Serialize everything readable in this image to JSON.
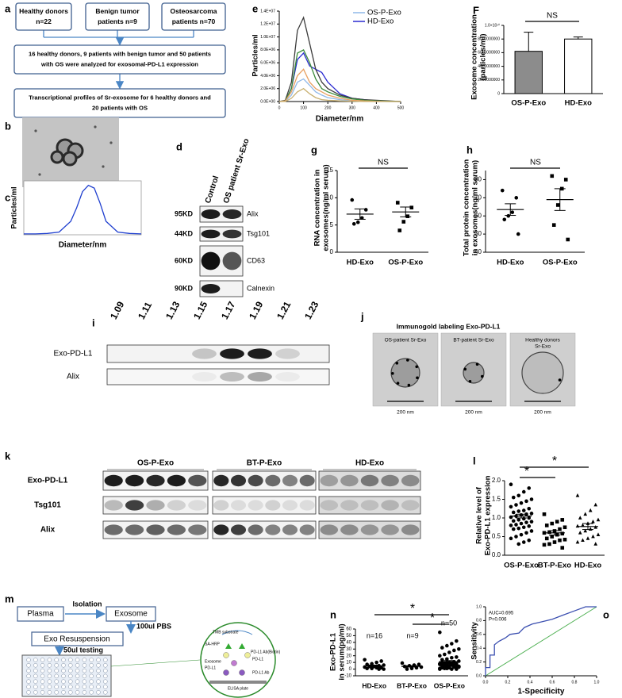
{
  "flowchart": {
    "label": "a",
    "boxes": [
      [
        "Healthy donors",
        "n=22"
      ],
      [
        "Benign tumor",
        "patients n=9"
      ],
      [
        "Osteosarcoma",
        "patients n=70"
      ],
      [
        "16 healthy donors, 9 patients with benign tumor and 50 patients",
        "with OS were analyzed for exosomal-PD-L1 expression"
      ],
      [
        "Transcriptional profiles of Sr-exosome for 6 healthy donors and",
        "20 patients with OS"
      ]
    ]
  },
  "em_image": {
    "label": "b"
  },
  "western_blot_d": {
    "label": "d",
    "columns": [
      "Control",
      "OS patient Sr-Exo"
    ],
    "rows": [
      {
        "size": "95KD",
        "protein": "Alix"
      },
      {
        "size": "44KD",
        "protein": "Tsg101"
      },
      {
        "size": "60KD",
        "protein": "CD63"
      },
      {
        "size": "90KD",
        "protein": "Calnexin"
      }
    ]
  },
  "density_blot": {
    "label": "i",
    "fractions": [
      1.09,
      1.11,
      1.13,
      1.15,
      1.17,
      1.19,
      1.21,
      1.23
    ],
    "rows": [
      "Exo-PD-L1",
      "Alix"
    ]
  },
  "immunogold": {
    "label": "j",
    "title": "Immunogold labeling Exo-PD-L1",
    "images": [
      {
        "caption": [
          "OS-patient  Sr-Exo"
        ],
        "scale": "200 nm"
      },
      {
        "caption": [
          "BT-patient  Sr-Exo"
        ],
        "scale": "200 nm"
      },
      {
        "caption": [
          "Healthy donors",
          "Sr-Exo"
        ],
        "scale": "200 nm"
      }
    ]
  },
  "western_blot_k": {
    "label": "k",
    "groups": [
      "OS-P-Exo",
      "BT-P-Exo",
      "HD-Exo"
    ],
    "rows": [
      "Exo-PD-L1",
      "Tsg101",
      "Alix"
    ]
  },
  "elisa_diagram": {
    "label": "m",
    "plasma": "Plasma",
    "isolation": "Isolation",
    "exosome": "Exosome",
    "pbs": "100ul PBS",
    "resuspension": "Exo Resuspension",
    "testing": "50ul testing",
    "inset": [
      "TMB substrate",
      "SA-HRP",
      "Exosome",
      "PD-L1",
      "PD-L1 Ab(Biotin)",
      "PD-L1",
      "PD-L1 Ab",
      "ELISA plate"
    ]
  },
  "chart_data": [
    {
      "type": "line",
      "label": "c",
      "ylabel": [
        "Particles/ml"
      ],
      "xlabel": "Diameter/nm",
      "x": [
        0,
        20,
        40,
        60,
        80,
        90,
        100,
        110,
        120,
        130,
        140,
        160,
        180,
        200
      ],
      "series": [
        {
          "color": "#1f3fcf",
          "values": [
            100000,
            100000,
            150000,
            300000,
            1500000,
            3000000,
            4800000,
            5500000,
            5200000,
            3500000,
            1500000,
            300000,
            150000,
            100000
          ]
        }
      ],
      "xlim": [
        0,
        200
      ],
      "ylim": [
        0,
        6000000
      ]
    },
    {
      "type": "line",
      "label": "e",
      "ylabel": [
        "Particles/ml"
      ],
      "xlabel": "Diameter/nm",
      "x": [
        0,
        25,
        50,
        75,
        100,
        125,
        150,
        175,
        200,
        250,
        300,
        350,
        400,
        450,
        500
      ],
      "series": [
        {
          "name": "OS-P-Exo",
          "color": "#8fb8e8",
          "values": [
            0,
            50000,
            1000000,
            3000000,
            3500000,
            2500000,
            1500000,
            1000000,
            600000,
            300000,
            100000,
            50000,
            0,
            0,
            0
          ]
        },
        {
          "name": "HD-Exo",
          "color": "#2a2ad0",
          "values": [
            0,
            100000,
            2000000,
            6500000,
            7500000,
            5500000,
            5000000,
            4500000,
            3000000,
            1200000,
            500000,
            300000,
            100000,
            50000,
            0
          ]
        },
        {
          "color": "#3c3c3c",
          "values": [
            0,
            200000,
            3000000,
            11000000,
            13000000,
            9000000,
            5000000,
            3000000,
            2000000,
            1000000,
            500000,
            300000,
            200000,
            100000,
            0
          ]
        },
        {
          "color": "#3a8a3a",
          "values": [
            0,
            100000,
            2000000,
            7500000,
            8000000,
            6000000,
            3500000,
            2000000,
            1500000,
            800000,
            400000,
            200000,
            100000,
            50000,
            0
          ]
        },
        {
          "color": "#e8a060",
          "values": [
            0,
            100000,
            1500000,
            4000000,
            5000000,
            3000000,
            2000000,
            1500000,
            1000000,
            500000,
            200000,
            100000,
            50000,
            0,
            0
          ]
        },
        {
          "color": "#c8b070",
          "values": [
            0,
            0,
            500000,
            1500000,
            2000000,
            1200000,
            600000,
            300000,
            200000,
            100000,
            50000,
            0,
            0,
            0,
            0
          ]
        }
      ],
      "xlim": [
        0,
        500
      ],
      "ylim": [
        0,
        14000000
      ],
      "xticks": [
        0,
        100,
        200,
        300,
        400,
        500
      ],
      "yticks": [
        {
          "value": 0,
          "label": "0.0E+00"
        },
        {
          "value": 2000000,
          "label": "2.0E+06"
        },
        {
          "value": 4000000,
          "label": "4.0E+06"
        },
        {
          "value": 6000000,
          "label": "6.0E+06"
        },
        {
          "value": 8000000,
          "label": "8.0E+06"
        },
        {
          "value": 10000000,
          "label": "1.0E+07"
        },
        {
          "value": 12000000,
          "label": "1.2E+07"
        },
        {
          "value": 14000000,
          "label": "1.4E+07"
        }
      ]
    },
    {
      "type": "bar",
      "label": "F",
      "ylabel": [
        "Exosome concentration",
        "(particles/ml)"
      ],
      "categories": [
        "OS-P-Exo",
        "HD-Exo"
      ],
      "values": [
        6200000000,
        8000000000
      ],
      "errors": [
        2800000000,
        300000000
      ],
      "colors": [
        "#8c8c8c",
        "#ffffff"
      ],
      "ylim": [
        0,
        10000000000
      ],
      "yticks": [
        0,
        2000000000,
        4000000000,
        6000000000,
        8000000000,
        {
          "value": 10000000000,
          "label": "1.0×10¹⁰"
        }
      ],
      "annotations": [
        "NS"
      ]
    },
    {
      "type": "dot",
      "label": "g",
      "ylabel": [
        "RNA concentration in",
        "exosomes(ng/ml serum)"
      ],
      "groups": [
        {
          "name": "HD-Exo",
          "points": [
            9.6,
            7.8,
            6.3,
            5.5,
            5.2
          ],
          "mean": 7.0,
          "sem": 0.95
        },
        {
          "name": "OS-P-Exo",
          "points": [
            9.1,
            8.2,
            6.6,
            5.6,
            4.0
          ],
          "mean": 7.4,
          "sem": 0.9
        }
      ],
      "markers": [
        "circle",
        "square"
      ],
      "ylim": [
        0,
        15
      ],
      "yticks": [
        0,
        5,
        10,
        15
      ],
      "annotations": [
        "NS"
      ]
    },
    {
      "type": "dot",
      "label": "h",
      "ylabel": [
        "Total protein concentration",
        "in exosomes(ng/ml serum)"
      ],
      "groups": [
        {
          "name": "HD-Exo",
          "points": [
            74,
            70,
            62,
            60,
            58,
            50
          ],
          "mean": 63.5,
          "sem": 3.2
        },
        {
          "name": "OS-P-Exo",
          "points": [
            82,
            80,
            75,
            66,
            55,
            47
          ],
          "mean": 69,
          "sem": 6
        }
      ],
      "markers": [
        "circle",
        "square"
      ],
      "ylim": [
        40,
        85
      ],
      "yticks": [
        40,
        50,
        60,
        70,
        80
      ],
      "annotations": [
        "NS"
      ]
    },
    {
      "type": "dot",
      "label": "l",
      "ylabel": [
        "Relative level of",
        "Exo-PD-L1 expression"
      ],
      "groups": [
        {
          "name": "OS-P-Exo",
          "points": [
            1.9,
            1.8,
            1.7,
            1.6,
            1.55,
            1.5,
            1.45,
            1.4,
            1.35,
            1.3,
            1.25,
            1.2,
            1.18,
            1.15,
            1.12,
            1.1,
            1.08,
            1.05,
            1.02,
            1.0,
            0.98,
            0.95,
            0.92,
            0.9,
            0.88,
            0.85,
            0.82,
            0.8,
            0.78,
            0.75,
            0.72,
            0.7,
            0.65,
            0.6,
            0.55,
            0.5,
            0.45,
            0.4,
            0.35,
            0.3
          ],
          "mean": 1.05,
          "sem": 0.05
        },
        {
          "name": "BT-P-Exo",
          "points": [
            1.1,
            0.95,
            0.9,
            0.85,
            0.8,
            0.75,
            0.7,
            0.65,
            0.62,
            0.6,
            0.58,
            0.55,
            0.5,
            0.45,
            0.42,
            0.4,
            0.35,
            0.3,
            0.28,
            0.2
          ],
          "mean": 0.6,
          "sem": 0.06
        },
        {
          "name": "HD-Exo",
          "points": [
            1.6,
            1.35,
            1.2,
            1.1,
            1.0,
            0.95,
            0.9,
            0.85,
            0.8,
            0.78,
            0.75,
            0.7,
            0.65,
            0.6,
            0.55,
            0.5,
            0.45,
            0.4,
            0.35,
            0.3
          ],
          "mean": 0.77,
          "sem": 0.08
        }
      ],
      "markers": [
        "circle",
        "square",
        "triangle"
      ],
      "ylim": [
        0,
        2
      ],
      "yticks": [
        {
          "value": 0,
          "label": "0.0"
        },
        0.5,
        {
          "value": 1,
          "label": "1.0"
        },
        1.5,
        {
          "value": 2,
          "label": "2.0"
        }
      ],
      "annotations": [
        "*",
        "*"
      ]
    },
    {
      "type": "dot",
      "label": "n",
      "ylabel": [
        "Exo-PD-L1",
        "in serum(pg/ml)"
      ],
      "groups": [
        {
          "name": "HD-Exo",
          "points": [
            14,
            12,
            10,
            8,
            7,
            6,
            5,
            4,
            4,
            3,
            2,
            2,
            1,
            1,
            0,
            0
          ],
          "mean": 4.9,
          "sem": 1.1
        },
        {
          "name": "BT-P-Exo",
          "points": [
            9,
            7,
            6,
            5,
            4,
            3,
            2,
            1,
            0
          ],
          "mean": 4.1,
          "sem": 1.0
        },
        {
          "name": "OS-P-Exo",
          "points": [
            55,
            42,
            38,
            35,
            32,
            30,
            28,
            25,
            22,
            20,
            18,
            17,
            15,
            14,
            12,
            11,
            10,
            9,
            8,
            7,
            6,
            5,
            5,
            4,
            3,
            2,
            2,
            1,
            0,
            0,
            1,
            2,
            3,
            4,
            5,
            6,
            7,
            8,
            9,
            10,
            3,
            4,
            6,
            2,
            1,
            0,
            5,
            7,
            8,
            9
          ],
          "mean": 11.2,
          "sem": 1.6
        }
      ],
      "markers": [
        "circle",
        "circle",
        "circle"
      ],
      "ylim": [
        -10,
        60
      ],
      "yticks": [
        -10,
        0,
        10,
        20,
        30,
        40,
        50,
        60
      ],
      "annotations": [
        "n=16",
        "n=9",
        "n=50",
        "*",
        "*"
      ]
    },
    {
      "type": "line",
      "label": "o",
      "ylabel": [
        "Sensitivity"
      ],
      "xlabel": "1-Specificity",
      "x": [
        0,
        0,
        0.04,
        0.04,
        0.08,
        0.08,
        0.12,
        0.18,
        0.22,
        0.3,
        0.35,
        0.42,
        0.5,
        0.6,
        0.7,
        0.8,
        0.9,
        1
      ],
      "series": [
        {
          "color": "#3b4fb0",
          "values": [
            0,
            0.12,
            0.12,
            0.3,
            0.3,
            0.45,
            0.5,
            0.55,
            0.6,
            0.62,
            0.7,
            0.75,
            0.78,
            0.82,
            0.88,
            0.94,
            1,
            1
          ]
        }
      ],
      "reference_line": true,
      "xlim": [
        0,
        1
      ],
      "ylim": [
        0,
        1
      ],
      "xticks": [
        {
          "value": 0,
          "label": "0.0"
        },
        0.2,
        0.4,
        0.6,
        0.8,
        {
          "value": 1,
          "label": "1.0"
        }
      ],
      "yticks": [
        {
          "value": 0,
          "label": "0.0"
        },
        0.2,
        0.4,
        0.6,
        0.8,
        {
          "value": 1,
          "label": "1.0"
        }
      ],
      "annotations": [
        "AUC=0.695",
        "P=0.006"
      ]
    }
  ]
}
